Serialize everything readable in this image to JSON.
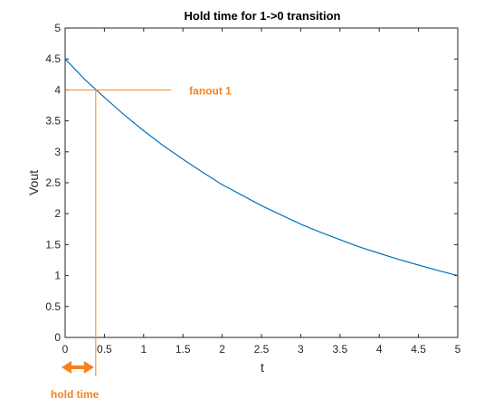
{
  "colors": {
    "curve": "#0072BD",
    "annotation": "#F58220",
    "axis": "#262626",
    "background": "#ffffff"
  },
  "chart_data": {
    "type": "line",
    "title": "Hold time for 1->0 transition",
    "xlabel": "t",
    "ylabel": "Vout",
    "xlim": [
      0,
      5
    ],
    "ylim": [
      0,
      5
    ],
    "x_ticks": [
      "0",
      "0.5",
      "1",
      "1.5",
      "2",
      "2.5",
      "3",
      "3.5",
      "4",
      "4.5",
      "5"
    ],
    "y_ticks": [
      "0",
      "0.5",
      "1",
      "1.5",
      "2",
      "2.5",
      "3",
      "3.5",
      "4",
      "4.5",
      "5"
    ],
    "grid": false,
    "series": [
      {
        "x": [
          0,
          0.25,
          0.5,
          0.75,
          1,
          1.25,
          1.5,
          1.75,
          2,
          2.25,
          2.5,
          2.75,
          3,
          3.25,
          3.5,
          3.75,
          4,
          4.25,
          4.5,
          4.75,
          5
        ],
        "y": [
          4.5,
          4.17,
          3.88,
          3.6,
          3.34,
          3.1,
          2.88,
          2.67,
          2.47,
          2.3,
          2.13,
          1.98,
          1.83,
          1.7,
          1.58,
          1.46,
          1.36,
          1.26,
          1.17,
          1.08,
          1.0
        ]
      }
    ],
    "annotations": [
      {
        "text": "fanout 1",
        "type": "hline",
        "y": 4,
        "x_from": 0,
        "x_to": 1.35
      },
      {
        "text": "hold time",
        "type": "vline",
        "x": 0.39,
        "y_from": 0,
        "y_to": 4
      }
    ]
  }
}
